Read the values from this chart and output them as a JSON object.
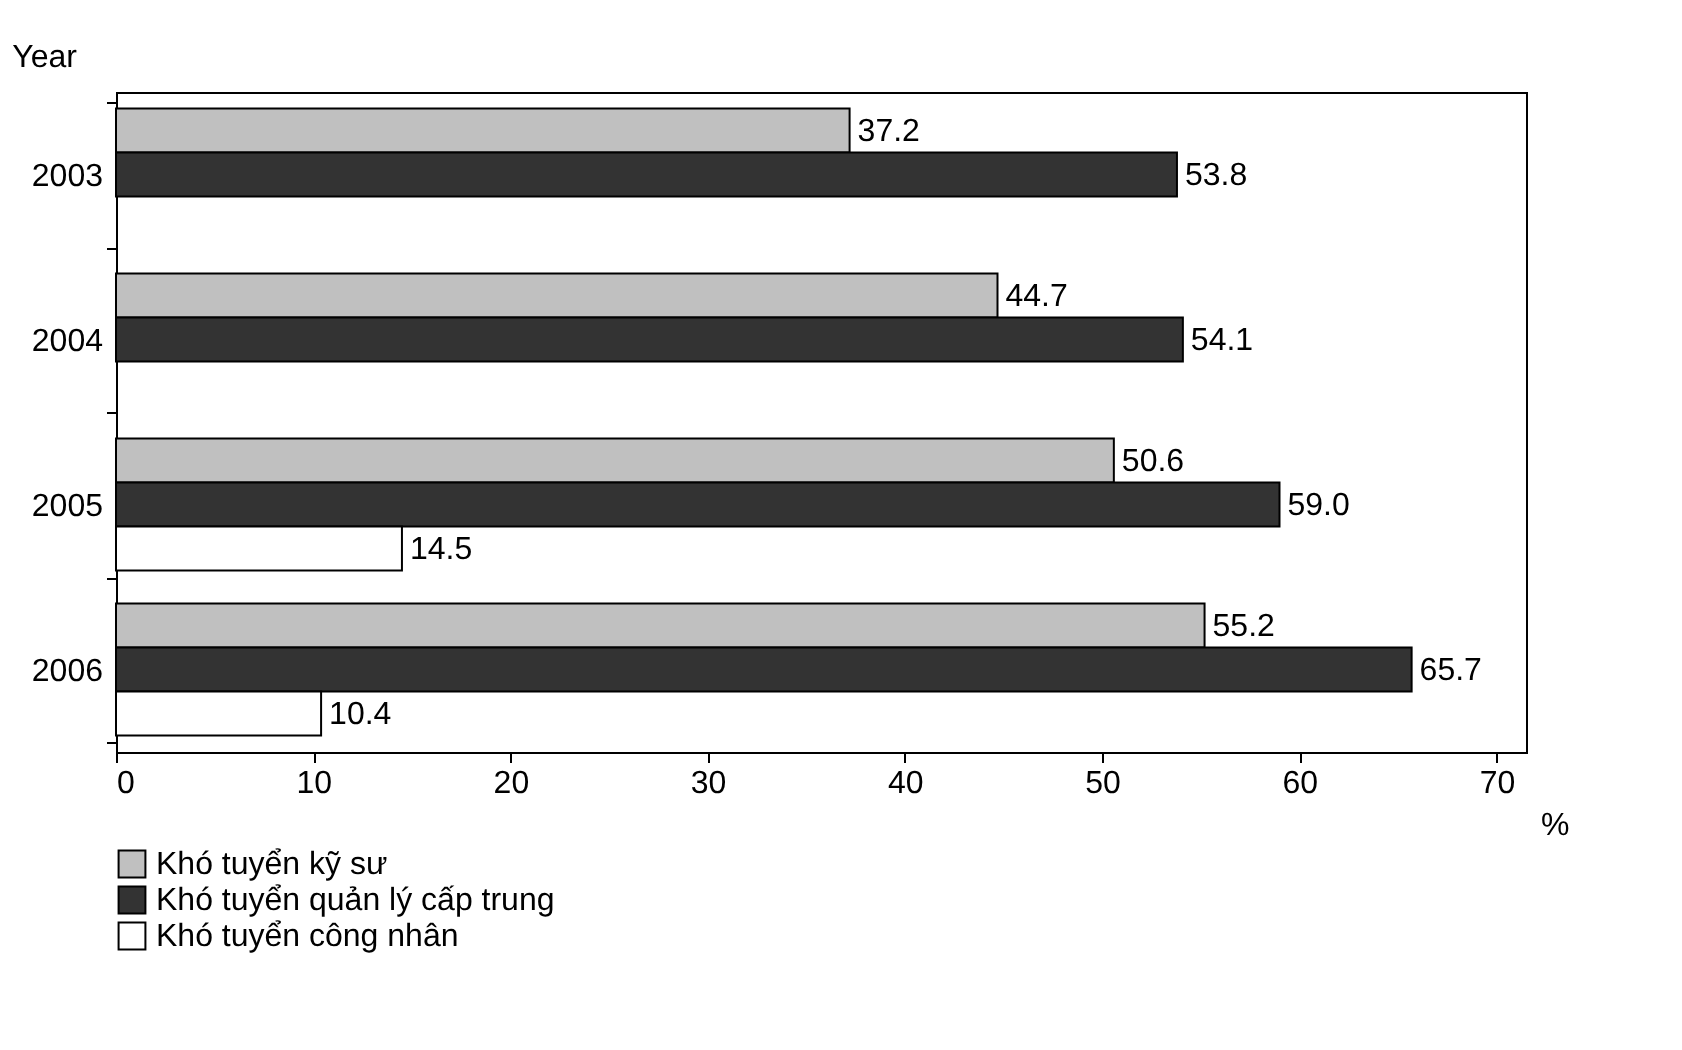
{
  "chart_data": {
    "type": "bar",
    "orientation": "horizontal",
    "ylabel": "Year",
    "xlabel": "%",
    "categories": [
      "2003",
      "2004",
      "2005",
      "2006"
    ],
    "series": [
      {
        "name": "Khó tuyển kỹ sư",
        "color": "#c0c0c0",
        "values": [
          37.2,
          44.7,
          50.6,
          55.2
        ],
        "value_labels": [
          "37.2",
          "44.7",
          "50.6",
          "55.2"
        ]
      },
      {
        "name": "Khó tuyển quản lý cấp trung",
        "color": "#333333",
        "values": [
          53.8,
          54.1,
          59.0,
          65.7
        ],
        "value_labels": [
          "53.8",
          "54.1",
          "59.0",
          "65.7"
        ]
      },
      {
        "name": "Khó tuyển công nhân",
        "color": "#ffffff",
        "values": [
          null,
          null,
          14.5,
          10.4
        ],
        "value_labels": [
          null,
          null,
          "14.5",
          "10.4"
        ]
      }
    ],
    "xlim": [
      0,
      71.5
    ],
    "xticks": [
      0,
      10,
      20,
      30,
      40,
      50,
      60,
      70
    ],
    "grid": false,
    "legend": "bottom"
  }
}
